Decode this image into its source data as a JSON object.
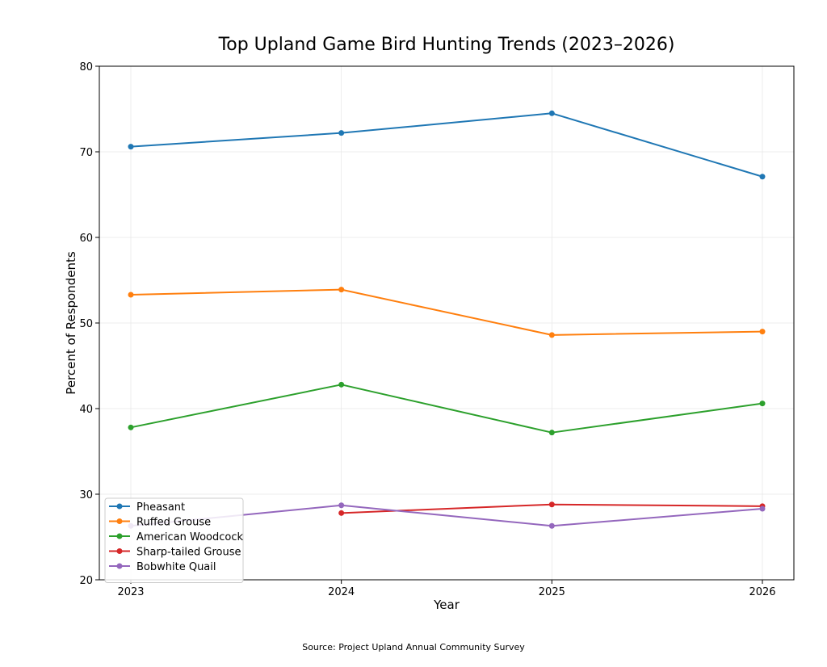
{
  "chart_data": {
    "type": "line",
    "title": "Top Upland Game Bird Hunting Trends (2023–2026)",
    "xlabel": "Year",
    "ylabel": "Percent of Respondents",
    "x": [
      "2023",
      "2024",
      "2025",
      "2026"
    ],
    "ylim": [
      20,
      80
    ],
    "yticks": [
      20,
      30,
      40,
      50,
      60,
      70,
      80
    ],
    "grid": true,
    "legend_position": "lower-left",
    "series": [
      {
        "name": "Pheasant",
        "color": "#1f77b4",
        "values": [
          70.6,
          72.2,
          74.5,
          67.1
        ]
      },
      {
        "name": "Ruffed Grouse",
        "color": "#ff7f0e",
        "values": [
          53.3,
          53.9,
          48.6,
          49.0
        ]
      },
      {
        "name": "American Woodcock",
        "color": "#2ca02c",
        "values": [
          37.8,
          42.8,
          37.2,
          40.6
        ]
      },
      {
        "name": "Sharp-tailed Grouse",
        "color": "#d62728",
        "values": [
          null,
          27.8,
          28.8,
          28.6
        ]
      },
      {
        "name": "Bobwhite Quail",
        "color": "#9467bd",
        "values": [
          26.3,
          28.7,
          26.3,
          28.3
        ]
      }
    ]
  },
  "footer": {
    "source": "Source: Project Upland Annual Community Survey"
  }
}
